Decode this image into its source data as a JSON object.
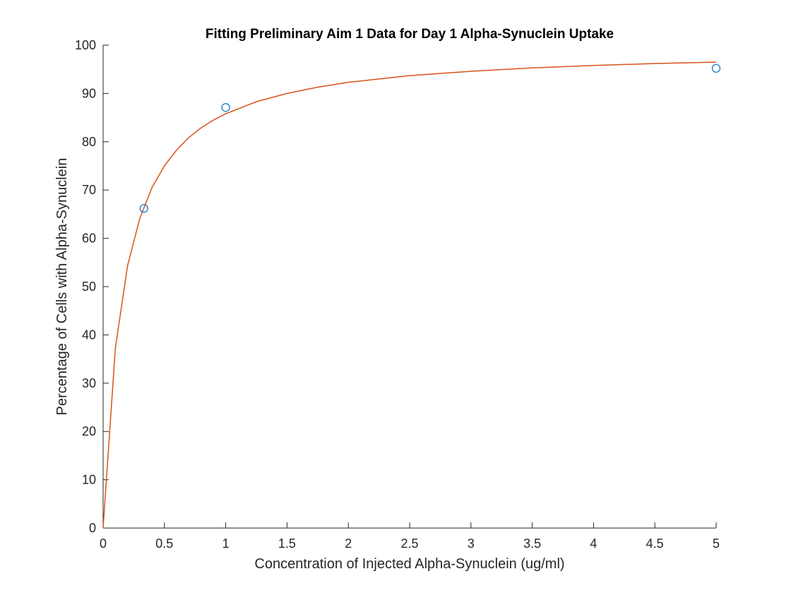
{
  "chart_data": {
    "type": "scatter",
    "title": "Fitting Preliminary Aim 1 Data for Day 1 Alpha-Synuclein Uptake",
    "xlabel": "Concentration of Injected Alpha-Synuclein (ug/ml)",
    "ylabel": "Percentage of Cells with Alpha-Synuclein",
    "xlim": [
      0,
      5
    ],
    "ylim": [
      0,
      100
    ],
    "xticks": [
      0,
      0.5,
      1,
      1.5,
      2,
      2.5,
      3,
      3.5,
      4,
      4.5,
      5
    ],
    "xtick_labels": [
      "0",
      "0.5",
      "1",
      "1.5",
      "2",
      "2.5",
      "3",
      "3.5",
      "4",
      "4.5",
      "5"
    ],
    "yticks": [
      0,
      10,
      20,
      30,
      40,
      50,
      60,
      70,
      80,
      90,
      100
    ],
    "ytick_labels": [
      "0",
      "10",
      "20",
      "30",
      "40",
      "50",
      "60",
      "70",
      "80",
      "90",
      "100"
    ],
    "grid": false,
    "series": [
      {
        "kind": "markers",
        "marker": "circle",
        "color": "#0072BD",
        "x": [
          0.333,
          1,
          5
        ],
        "y": [
          66.2,
          87.1,
          95.2
        ]
      },
      {
        "kind": "line",
        "color": "#D95319",
        "x": [
          0,
          0.1,
          0.2,
          0.3,
          0.4,
          0.5,
          0.6,
          0.7,
          0.8,
          0.9,
          1,
          1.25,
          1.5,
          1.75,
          2,
          2.5,
          3,
          3.5,
          4,
          4.5,
          5
        ],
        "y": [
          0,
          37.3,
          54.4,
          64.2,
          70.6,
          75.0,
          78.3,
          80.9,
          82.9,
          84.5,
          85.8,
          88.3,
          90.0,
          91.3,
          92.3,
          93.7,
          94.6,
          95.3,
          95.8,
          96.2,
          96.5
        ]
      }
    ]
  }
}
